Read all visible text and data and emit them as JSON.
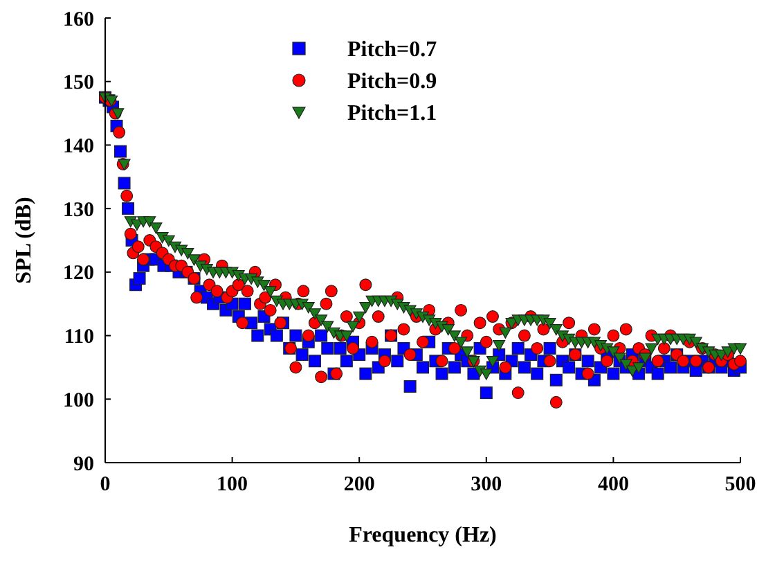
{
  "chart_data": {
    "type": "scatter",
    "xlabel": "Frequency (Hz)",
    "ylabel": "SPL (dB)",
    "xlim": [
      0,
      500
    ],
    "xticks": [
      0,
      100,
      200,
      300,
      400,
      500
    ],
    "ylim": [
      90,
      160
    ],
    "yticks": [
      90,
      100,
      110,
      120,
      130,
      140,
      150,
      160
    ],
    "grid": false,
    "legend": "top",
    "series": [
      {
        "name": "Pitch=0.7",
        "color": "#0000ff",
        "marker": "square",
        "x": [
          0,
          3,
          6,
          9,
          12,
          15,
          18,
          21,
          24,
          27,
          30,
          34,
          40,
          46,
          52,
          58,
          64,
          70,
          75,
          80,
          85,
          90,
          95,
          100,
          105,
          110,
          115,
          120,
          125,
          130,
          135,
          140,
          145,
          150,
          155,
          160,
          165,
          170,
          175,
          180,
          185,
          190,
          195,
          200,
          205,
          210,
          215,
          220,
          225,
          230,
          235,
          240,
          245,
          250,
          255,
          260,
          265,
          270,
          275,
          280,
          285,
          290,
          295,
          300,
          305,
          310,
          315,
          320,
          325,
          330,
          335,
          340,
          345,
          350,
          355,
          360,
          365,
          370,
          375,
          380,
          385,
          390,
          395,
          400,
          405,
          410,
          415,
          420,
          425,
          430,
          435,
          440,
          445,
          450,
          455,
          460,
          465,
          470,
          475,
          480,
          485,
          490,
          495,
          500
        ],
        "values": [
          147.5,
          147,
          146,
          143,
          139,
          134,
          130,
          125,
          118,
          119,
          121,
          122,
          122,
          121,
          121,
          120,
          120,
          119,
          117,
          116,
          115,
          116,
          114,
          115,
          113,
          115,
          112,
          110,
          113,
          111,
          110,
          112,
          108,
          110,
          107,
          109,
          106,
          110,
          108,
          104,
          108,
          106,
          109,
          107,
          104,
          108,
          105,
          107,
          110,
          106,
          108,
          102,
          107,
          105,
          109,
          106,
          104,
          108,
          105,
          107,
          106,
          104,
          108,
          101,
          105,
          107,
          104,
          106,
          108,
          105,
          107,
          104,
          106,
          108,
          103,
          106,
          105,
          107,
          104,
          106,
          103,
          105,
          107,
          104,
          106,
          105,
          107,
          104,
          106,
          105,
          104,
          106,
          105,
          107,
          105,
          106,
          104.5,
          106,
          105,
          106,
          105,
          106,
          104.5,
          105
        ]
      },
      {
        "name": "Pitch=0.9",
        "color": "#ff0000",
        "marker": "circle",
        "x": [
          0,
          4,
          8,
          11,
          14,
          17,
          20,
          22,
          26,
          30,
          35,
          40,
          45,
          50,
          55,
          60,
          65,
          70,
          72,
          78,
          82,
          88,
          92,
          96,
          100,
          105,
          108,
          112,
          118,
          122,
          126,
          130,
          134,
          138,
          142,
          146,
          150,
          152,
          156,
          160,
          165,
          170,
          174,
          178,
          182,
          186,
          190,
          195,
          200,
          205,
          210,
          215,
          220,
          225,
          230,
          235,
          240,
          245,
          250,
          255,
          260,
          265,
          270,
          275,
          280,
          285,
          290,
          295,
          300,
          305,
          310,
          315,
          320,
          325,
          330,
          335,
          340,
          345,
          350,
          355,
          360,
          365,
          370,
          375,
          380,
          385,
          390,
          395,
          400,
          405,
          410,
          415,
          420,
          425,
          430,
          435,
          440,
          445,
          450,
          455,
          460,
          465,
          470,
          475,
          480,
          485,
          490,
          495,
          500
        ],
        "values": [
          147.5,
          147,
          145,
          142,
          137,
          132,
          126,
          123,
          124,
          122,
          125,
          124,
          123,
          122,
          121,
          121,
          120,
          119,
          116,
          122,
          118,
          117,
          121,
          116,
          117,
          118,
          112,
          117,
          120,
          115,
          116,
          114,
          118,
          112,
          116,
          108,
          105,
          115,
          117,
          110,
          112,
          103.5,
          115,
          117,
          104,
          110,
          113,
          108,
          112,
          118,
          109,
          113,
          106,
          110,
          116,
          111,
          107,
          113,
          109,
          114,
          111,
          106,
          112,
          108,
          114,
          110,
          106,
          112,
          109,
          113,
          111,
          105,
          112,
          101,
          110,
          113,
          108,
          111,
          106,
          99.5,
          109,
          112,
          107,
          110,
          104,
          111,
          108,
          106,
          110,
          108,
          111,
          106,
          108,
          107,
          110,
          106,
          108,
          110,
          107,
          106,
          109,
          106,
          108,
          105,
          107,
          106,
          107,
          105.5,
          106
        ]
      },
      {
        "name": "Pitch=1.1",
        "color": "#1a7a1a",
        "marker": "triangle",
        "x": [
          0,
          5,
          10,
          15,
          20,
          25,
          30,
          35,
          40,
          45,
          50,
          55,
          60,
          65,
          70,
          75,
          80,
          85,
          90,
          95,
          100,
          105,
          110,
          115,
          120,
          125,
          130,
          135,
          140,
          145,
          150,
          155,
          160,
          165,
          170,
          175,
          180,
          185,
          190,
          195,
          200,
          205,
          210,
          215,
          220,
          225,
          230,
          235,
          240,
          245,
          250,
          255,
          260,
          265,
          270,
          275,
          280,
          285,
          290,
          295,
          300,
          305,
          310,
          315,
          320,
          325,
          330,
          335,
          340,
          345,
          350,
          355,
          360,
          365,
          370,
          375,
          380,
          385,
          390,
          395,
          400,
          405,
          410,
          415,
          420,
          425,
          430,
          435,
          440,
          445,
          450,
          455,
          460,
          465,
          470,
          475,
          480,
          485,
          490,
          495,
          500
        ],
        "values": [
          147.5,
          147,
          145,
          137,
          128,
          127.5,
          128,
          128,
          127,
          125.5,
          125,
          124,
          123.5,
          123,
          122,
          121,
          120.5,
          120,
          120,
          120,
          120,
          119.5,
          119,
          119,
          118.5,
          118,
          117,
          115.5,
          115,
          115,
          115,
          115,
          114.5,
          113.5,
          112.5,
          111.5,
          110.5,
          110,
          110,
          111.5,
          113,
          114.5,
          115.5,
          115.5,
          115.5,
          115.5,
          115,
          114.5,
          114,
          113.5,
          113,
          112.5,
          112,
          111.5,
          111,
          110,
          109,
          107.5,
          106,
          104.5,
          104,
          106,
          108.5,
          110.5,
          112,
          112.5,
          112.5,
          112.5,
          112.5,
          112.5,
          112,
          111,
          110,
          109.5,
          109,
          109,
          109,
          109,
          108.5,
          108,
          107.5,
          106.5,
          105.5,
          104.5,
          105,
          106.5,
          108,
          109.5,
          109.5,
          109.5,
          109.5,
          109.5,
          109.5,
          109,
          108,
          107.5,
          107,
          107,
          107.5,
          108,
          108
        ]
      }
    ]
  }
}
